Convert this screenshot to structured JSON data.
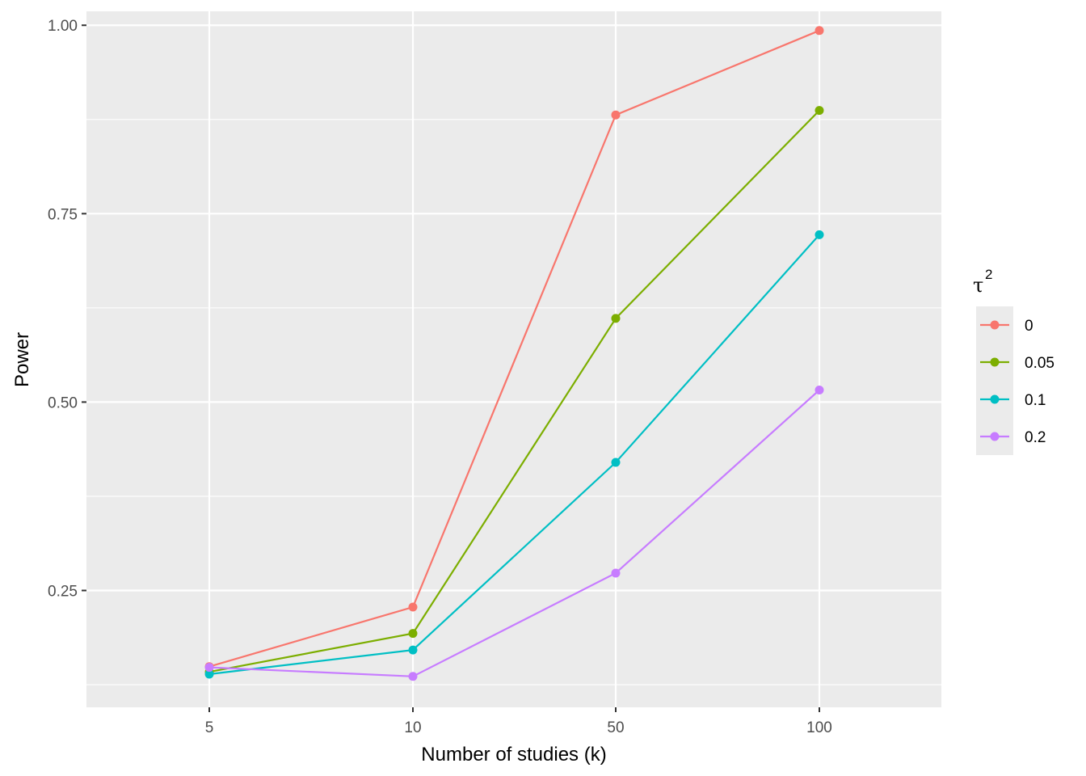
{
  "chart_data": {
    "type": "line",
    "title": "",
    "xlabel": "Number of studies (k)",
    "ylabel": "Power",
    "categories": [
      "5",
      "10",
      "50",
      "100"
    ],
    "ylim": [
      0.095,
      1.0185
    ],
    "yticks": [
      "0.25",
      "0.50",
      "0.75",
      "1.00"
    ],
    "ytick_values": [
      0.25,
      0.5,
      0.75,
      1.0
    ],
    "grid": true,
    "legend": {
      "title": "τ",
      "title_superscript": "2",
      "placement": "right"
    },
    "series": [
      {
        "name": "0",
        "color": "#F8766D",
        "values": [
          0.149,
          0.228,
          0.881,
          0.993
        ]
      },
      {
        "name": "0.05",
        "color": "#7CAE00",
        "values": [
          0.142,
          0.193,
          0.611,
          0.887
        ]
      },
      {
        "name": "0.1",
        "color": "#00BFC4",
        "values": [
          0.139,
          0.171,
          0.42,
          0.722
        ]
      },
      {
        "name": "0.2",
        "color": "#C77CFF",
        "values": [
          0.148,
          0.136,
          0.273,
          0.516
        ]
      }
    ]
  }
}
